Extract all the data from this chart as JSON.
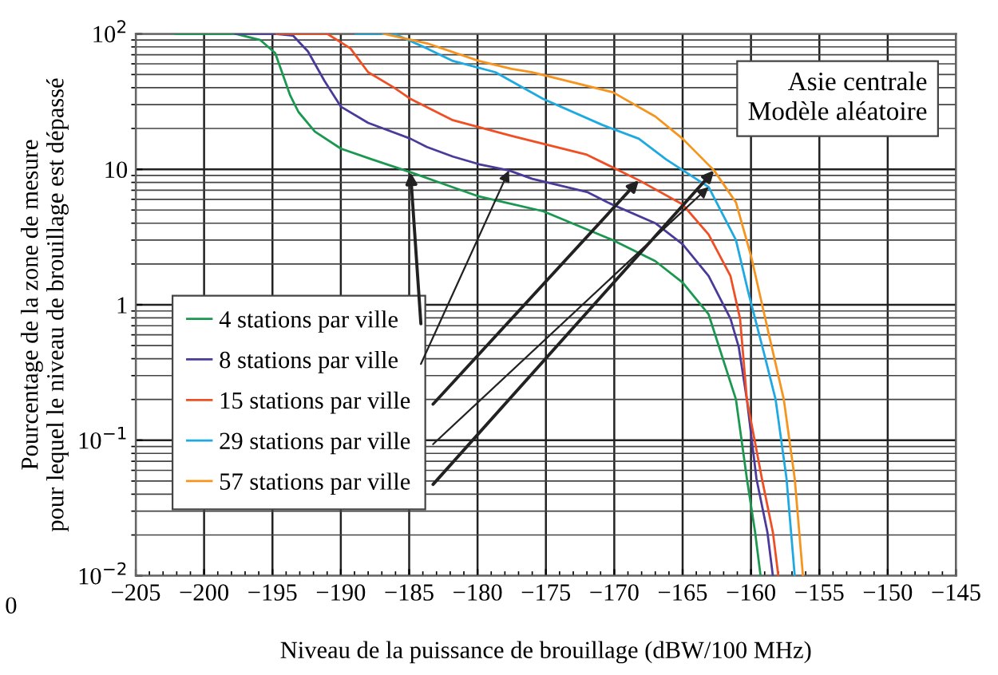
{
  "chart_data": {
    "type": "line",
    "xlabel": "Niveau de la puissance de brouillage (dBW/100 MHz)",
    "ylabel": "Pourcentage de la zone de mesure\npour lequel le niveau de brouillage est dépassé",
    "annotations": [
      "Asie centrale\nModèle aléatoire",
      "0"
    ],
    "xlim": [
      -205,
      -145
    ],
    "xticks": [
      {
        "value": -205,
        "label": "−205"
      },
      {
        "value": -200,
        "label": "−200"
      },
      {
        "value": -195,
        "label": "−195"
      },
      {
        "value": -190,
        "label": "−190"
      },
      {
        "value": -185,
        "label": "−185"
      },
      {
        "value": -180,
        "label": "−180"
      },
      {
        "value": -175,
        "label": "−175"
      },
      {
        "value": -170,
        "label": "−170"
      },
      {
        "value": -165,
        "label": "−165"
      },
      {
        "value": -160,
        "label": "−160"
      },
      {
        "value": -155,
        "label": "−155"
      },
      {
        "value": -150,
        "label": "−150"
      },
      {
        "value": -145,
        "label": "−145"
      }
    ],
    "ylim": [
      0.01,
      100
    ],
    "yticks": [
      {
        "value": 0.01,
        "label": "10$^{−2}$"
      },
      {
        "value": 0.1,
        "label": "10$^{−1}$"
      },
      1,
      10,
      {
        "value": 100,
        "label": "10$^{2}$"
      }
    ],
    "log": "y",
    "grid": true,
    "legend": "bottom left",
    "marker": "none",
    "line_style": "solid",
    "series": [
      {
        "name": "4 stations par ville",
        "color": "#1a9850",
        "x": [
          -202.1,
          -197.7,
          -195.9,
          -194.8,
          -193.7,
          -193.1,
          -191.9,
          -190.0,
          -187.7,
          -184.9,
          -182.5,
          -179.9,
          -175.2,
          -170.1,
          -167.0,
          -165.0,
          -163.1,
          -161.1,
          -160.3,
          -159.7,
          -159.3
        ],
        "values": [
          100,
          100,
          90,
          72,
          35,
          26.5,
          19,
          14.2,
          11.8,
          9.5,
          7.8,
          6.3,
          4.9,
          3.0,
          2.1,
          1.46,
          0.85,
          0.2,
          0.052,
          0.021,
          0.01
        ]
      },
      {
        "name": "8 stations par ville",
        "color": "#4b3a9a",
        "x": [
          -197.7,
          -194.8,
          -193.5,
          -192.4,
          -191.2,
          -190.0,
          -188.0,
          -184.9,
          -183.7,
          -181.8,
          -179.9,
          -177.7,
          -176.0,
          -172.0,
          -170.5,
          -167.0,
          -165.0,
          -163.1,
          -161.5,
          -160.9,
          -160.3,
          -159.6,
          -158.8,
          -158.4
        ],
        "values": [
          100,
          100,
          97,
          74,
          45,
          29,
          22,
          16.8,
          14.6,
          12.4,
          10.9,
          9.8,
          8.5,
          6.8,
          5.7,
          4.0,
          2.8,
          1.63,
          0.79,
          0.49,
          0.2,
          0.052,
          0.021,
          0.01
        ]
      },
      {
        "name": "15 stations par ville",
        "color": "#f04e23",
        "x": [
          -194.7,
          -191.0,
          -189.3,
          -188.0,
          -186.1,
          -184.9,
          -181.8,
          -177.5,
          -172.0,
          -168.2,
          -165.0,
          -163.1,
          -161.5,
          -160.8,
          -160.3,
          -159.2,
          -158.4,
          -158.0
        ],
        "values": [
          100,
          100,
          78,
          52,
          40,
          33,
          23,
          17.6,
          12.8,
          8.3,
          5.5,
          3.3,
          1.63,
          0.79,
          0.2,
          0.052,
          0.021,
          0.01
        ]
      },
      {
        "name": "29 stations par ville",
        "color": "#1ea9e1",
        "x": [
          -188.9,
          -186.1,
          -183.7,
          -181.8,
          -178.7,
          -175.2,
          -170.9,
          -168.2,
          -166.2,
          -163.1,
          -161.1,
          -160.2,
          -159.0,
          -158.2,
          -157.4,
          -156.8
        ],
        "values": [
          100,
          100,
          78,
          63,
          52,
          33,
          21.3,
          16.8,
          11.8,
          7.4,
          3.0,
          1.24,
          0.42,
          0.2,
          0.052,
          0.01
        ]
      },
      {
        "name": "57 stations par ville",
        "color": "#f7941d",
        "x": [
          -186.9,
          -183.7,
          -179.9,
          -177.5,
          -176.0,
          -170.1,
          -167.0,
          -165.0,
          -162.7,
          -161.1,
          -160.0,
          -158.6,
          -157.6,
          -156.8,
          -156.2
        ],
        "values": [
          100,
          85,
          63,
          55,
          52,
          37,
          24.5,
          16.8,
          9.8,
          5.7,
          2.3,
          0.55,
          0.2,
          0.052,
          0.01
        ]
      }
    ]
  }
}
